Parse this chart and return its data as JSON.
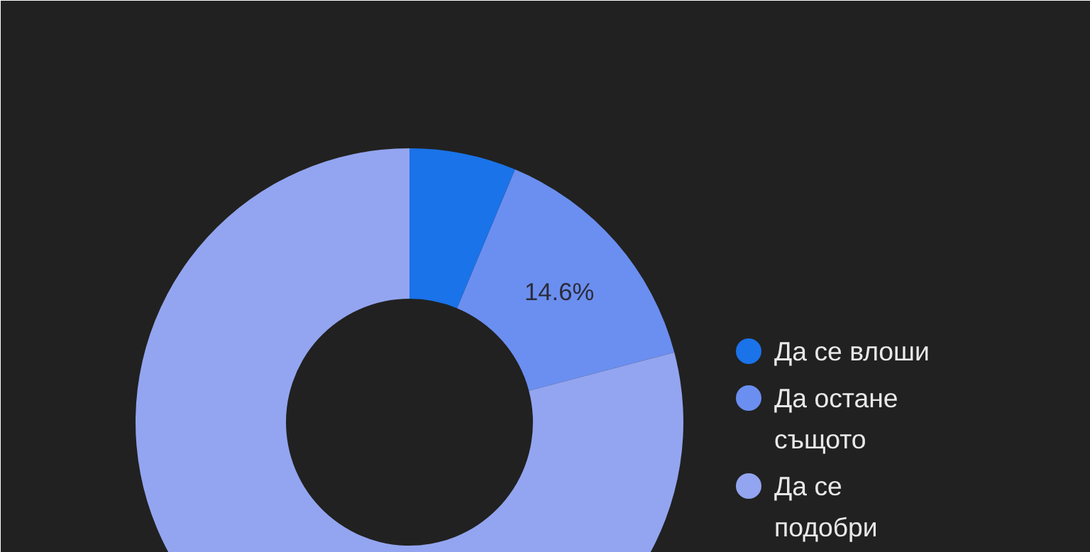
{
  "chart_data": {
    "type": "donut",
    "categories": [
      "Да се влоши",
      "Да остане същото",
      "Да се подобри"
    ],
    "values": [
      6.3,
      14.6,
      79.1
    ],
    "colors": [
      "#1a73e8",
      "#6b8ff0",
      "#93a5f0"
    ],
    "value_labels": [
      null,
      "14.6%",
      null
    ],
    "legend": "right"
  }
}
